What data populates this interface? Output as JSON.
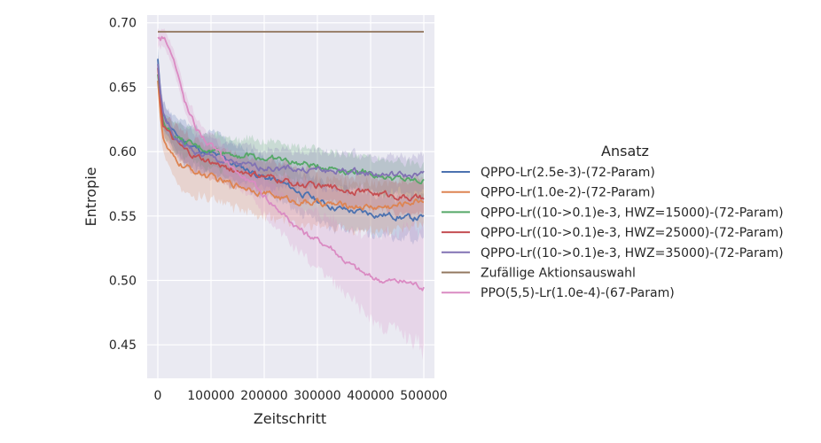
{
  "chart_data": {
    "type": "line",
    "xlabel": "Zeitschritt",
    "ylabel": "Entropie",
    "xlim": [
      -20000,
      520000
    ],
    "ylim": [
      0.424,
      0.706
    ],
    "xticks": [
      0,
      100000,
      200000,
      300000,
      400000,
      500000
    ],
    "xtick_labels": [
      "0",
      "100000",
      "200000",
      "300000",
      "400000",
      "500000"
    ],
    "yticks": [
      0.45,
      0.5,
      0.55,
      0.6,
      0.65,
      0.7
    ],
    "ytick_labels": [
      "0.45",
      "0.50",
      "0.55",
      "0.60",
      "0.65",
      "0.70"
    ],
    "grid": true,
    "legend": {
      "title": "Ansatz",
      "placement": "right outside"
    },
    "series": [
      {
        "name": "QPPO-Lr(2.5e-3)-(72-Param)",
        "color": "#4c72b0",
        "band": 0.012,
        "points": [
          [
            0,
            0.672
          ],
          [
            5000,
            0.645
          ],
          [
            10000,
            0.63
          ],
          [
            20000,
            0.622
          ],
          [
            30000,
            0.614
          ],
          [
            50000,
            0.608
          ],
          [
            75000,
            0.602
          ],
          [
            100000,
            0.598
          ],
          [
            125000,
            0.594
          ],
          [
            150000,
            0.589
          ],
          [
            175000,
            0.585
          ],
          [
            200000,
            0.58
          ],
          [
            225000,
            0.577
          ],
          [
            250000,
            0.572
          ],
          [
            275000,
            0.567
          ],
          [
            300000,
            0.562
          ],
          [
            325000,
            0.558
          ],
          [
            350000,
            0.555
          ],
          [
            375000,
            0.553
          ],
          [
            400000,
            0.552
          ],
          [
            425000,
            0.551
          ],
          [
            450000,
            0.55
          ],
          [
            475000,
            0.548
          ],
          [
            500000,
            0.549
          ]
        ]
      },
      {
        "name": "QPPO-Lr(1.0e-2)-(72-Param)",
        "color": "#dd8452",
        "band": 0.014,
        "points": [
          [
            0,
            0.655
          ],
          [
            5000,
            0.63
          ],
          [
            10000,
            0.61
          ],
          [
            20000,
            0.6
          ],
          [
            30000,
            0.594
          ],
          [
            50000,
            0.588
          ],
          [
            75000,
            0.584
          ],
          [
            100000,
            0.58
          ],
          [
            125000,
            0.576
          ],
          [
            150000,
            0.574
          ],
          [
            175000,
            0.572
          ],
          [
            200000,
            0.568
          ],
          [
            225000,
            0.565
          ],
          [
            250000,
            0.562
          ],
          [
            275000,
            0.561
          ],
          [
            300000,
            0.56
          ],
          [
            325000,
            0.559
          ],
          [
            350000,
            0.558
          ],
          [
            375000,
            0.558
          ],
          [
            400000,
            0.557
          ],
          [
            425000,
            0.557
          ],
          [
            450000,
            0.558
          ],
          [
            475000,
            0.561
          ],
          [
            500000,
            0.563
          ]
        ]
      },
      {
        "name": "QPPO-Lr((10->0.1)e-3, HWZ=15000)-(72-Param)",
        "color": "#55a868",
        "band": 0.01,
        "points": [
          [
            0,
            0.66
          ],
          [
            5000,
            0.64
          ],
          [
            10000,
            0.625
          ],
          [
            20000,
            0.618
          ],
          [
            30000,
            0.613
          ],
          [
            50000,
            0.607
          ],
          [
            75000,
            0.603
          ],
          [
            100000,
            0.601
          ],
          [
            125000,
            0.6
          ],
          [
            150000,
            0.598
          ],
          [
            175000,
            0.597
          ],
          [
            200000,
            0.595
          ],
          [
            225000,
            0.594
          ],
          [
            250000,
            0.592
          ],
          [
            275000,
            0.59
          ],
          [
            300000,
            0.589
          ],
          [
            325000,
            0.588
          ],
          [
            350000,
            0.586
          ],
          [
            375000,
            0.585
          ],
          [
            400000,
            0.583
          ],
          [
            425000,
            0.581
          ],
          [
            450000,
            0.579
          ],
          [
            475000,
            0.577
          ],
          [
            500000,
            0.577
          ]
        ]
      },
      {
        "name": "QPPO-Lr((10->0.1)e-3, HWZ=25000)-(72-Param)",
        "color": "#c44e52",
        "band": 0.01,
        "points": [
          [
            0,
            0.665
          ],
          [
            5000,
            0.64
          ],
          [
            10000,
            0.622
          ],
          [
            20000,
            0.614
          ],
          [
            30000,
            0.608
          ],
          [
            50000,
            0.6
          ],
          [
            75000,
            0.595
          ],
          [
            100000,
            0.591
          ],
          [
            125000,
            0.588
          ],
          [
            150000,
            0.585
          ],
          [
            175000,
            0.583
          ],
          [
            200000,
            0.58
          ],
          [
            225000,
            0.578
          ],
          [
            250000,
            0.576
          ],
          [
            275000,
            0.574
          ],
          [
            300000,
            0.573
          ],
          [
            325000,
            0.572
          ],
          [
            350000,
            0.571
          ],
          [
            375000,
            0.57
          ],
          [
            400000,
            0.568
          ],
          [
            425000,
            0.567
          ],
          [
            450000,
            0.566
          ],
          [
            475000,
            0.564
          ],
          [
            500000,
            0.563
          ]
        ]
      },
      {
        "name": "QPPO-Lr((10->0.1)e-3, HWZ=35000)-(72-Param)",
        "color": "#8172b3",
        "band": 0.011,
        "points": [
          [
            0,
            0.668
          ],
          [
            5000,
            0.645
          ],
          [
            10000,
            0.628
          ],
          [
            20000,
            0.62
          ],
          [
            30000,
            0.612
          ],
          [
            50000,
            0.605
          ],
          [
            75000,
            0.599
          ],
          [
            100000,
            0.595
          ],
          [
            125000,
            0.592
          ],
          [
            150000,
            0.59
          ],
          [
            175000,
            0.588
          ],
          [
            200000,
            0.588
          ],
          [
            225000,
            0.587
          ],
          [
            250000,
            0.587
          ],
          [
            275000,
            0.586
          ],
          [
            300000,
            0.586
          ],
          [
            325000,
            0.585
          ],
          [
            350000,
            0.585
          ],
          [
            375000,
            0.584
          ],
          [
            400000,
            0.583
          ],
          [
            425000,
            0.582
          ],
          [
            450000,
            0.582
          ],
          [
            475000,
            0.581
          ],
          [
            500000,
            0.582
          ]
        ]
      },
      {
        "name": "Zufällige Aktionsauswahl",
        "color": "#937860",
        "band": 0,
        "points": [
          [
            0,
            0.6931
          ],
          [
            500000,
            0.6931
          ]
        ]
      },
      {
        "name": "PPO(5,5)-Lr(1.0e-4)-(67-Param)",
        "color": "#da8bc3",
        "band": 0.018,
        "points": [
          [
            0,
            0.688
          ],
          [
            10000,
            0.69
          ],
          [
            20000,
            0.685
          ],
          [
            30000,
            0.672
          ],
          [
            40000,
            0.655
          ],
          [
            50000,
            0.64
          ],
          [
            60000,
            0.628
          ],
          [
            70000,
            0.62
          ],
          [
            80000,
            0.614
          ],
          [
            100000,
            0.604
          ],
          [
            125000,
            0.594
          ],
          [
            150000,
            0.584
          ],
          [
            175000,
            0.575
          ],
          [
            200000,
            0.566
          ],
          [
            225000,
            0.556
          ],
          [
            250000,
            0.546
          ],
          [
            275000,
            0.537
          ],
          [
            300000,
            0.531
          ],
          [
            325000,
            0.526
          ],
          [
            350000,
            0.516
          ],
          [
            375000,
            0.508
          ],
          [
            400000,
            0.502
          ],
          [
            425000,
            0.5
          ],
          [
            450000,
            0.499
          ],
          [
            475000,
            0.498
          ],
          [
            500000,
            0.495
          ]
        ]
      }
    ]
  }
}
